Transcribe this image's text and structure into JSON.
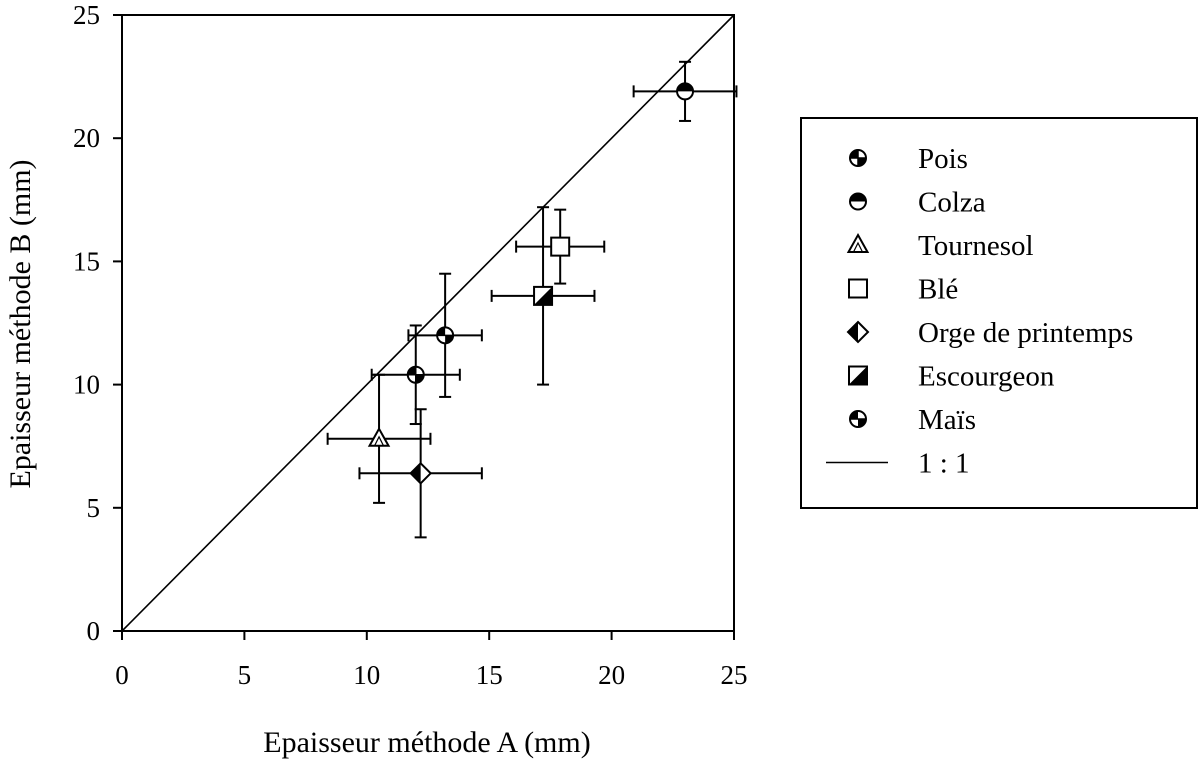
{
  "chart_data": {
    "type": "scatter",
    "title": "",
    "xlabel": "Epaisseur méthode A (mm)",
    "ylabel": "Epaisseur méthode B (mm)",
    "xlim": [
      0,
      25
    ],
    "ylim": [
      0,
      25
    ],
    "x_ticks": [
      "0",
      "5",
      "10",
      "15",
      "20",
      "25"
    ],
    "y_ticks": [
      "0",
      "5",
      "10",
      "15",
      "20",
      "25"
    ],
    "grid": false,
    "legend_position": "right",
    "series": [
      {
        "name": "Pois",
        "marker": "circle-quartered",
        "x": 12.0,
        "y": 10.4,
        "x_err": 1.8,
        "y_err": 2.0
      },
      {
        "name": "Colza",
        "marker": "circle-half",
        "x": 23.0,
        "y": 21.9,
        "x_err": 2.1,
        "y_err": 1.2
      },
      {
        "name": "Tournesol",
        "marker": "triangle",
        "x": 10.5,
        "y": 7.8,
        "x_err": 2.1,
        "y_err": 2.6
      },
      {
        "name": "Blé",
        "marker": "square",
        "x": 17.9,
        "y": 15.6,
        "x_err": 1.8,
        "y_err": 1.5
      },
      {
        "name": "Orge de printemps",
        "marker": "diamond-half",
        "x": 12.2,
        "y": 6.4,
        "x_err": 2.5,
        "y_err": 2.6
      },
      {
        "name": "Escourgeon",
        "marker": "square-half",
        "x": 17.2,
        "y": 13.6,
        "x_err": 2.1,
        "y_err": 3.6
      },
      {
        "name": "Maïs",
        "marker": "circle-quadrant",
        "x": 13.2,
        "y": 12.0,
        "x_err": 1.5,
        "y_err": 2.5
      }
    ],
    "reference_line": {
      "name": "1 : 1",
      "x": [
        0,
        25
      ],
      "y": [
        0,
        25
      ]
    }
  }
}
